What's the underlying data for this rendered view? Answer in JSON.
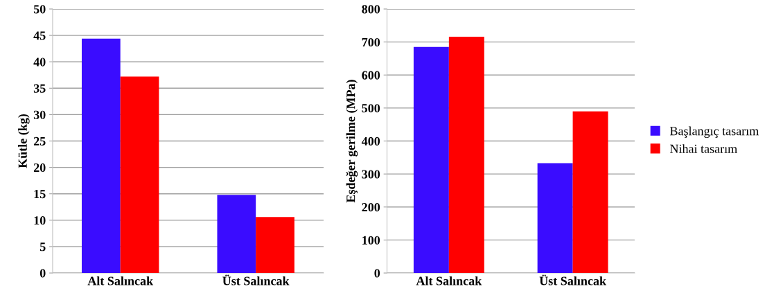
{
  "chart_data": [
    {
      "type": "bar",
      "ylabel": "Kütle (kg)",
      "categories": [
        "Alt Salıncak",
        "Üst Salıncak"
      ],
      "ylim": [
        0,
        50
      ],
      "yticks": [
        0,
        5,
        10,
        15,
        20,
        25,
        30,
        35,
        40,
        45,
        50
      ],
      "grid": "y",
      "legend": false,
      "series": [
        {
          "color": "#3a0cff",
          "values": [
            44.4,
            14.8
          ]
        },
        {
          "color": "#ff0000",
          "values": [
            37.2,
            10.6
          ]
        }
      ]
    },
    {
      "type": "bar",
      "ylabel": "Eşdeğer gerilme (MPa)",
      "categories": [
        "Alt Salıncak",
        "Üst Salıncak"
      ],
      "ylim": [
        0,
        800
      ],
      "yticks": [
        0,
        100,
        200,
        300,
        400,
        500,
        600,
        700,
        800
      ],
      "grid": "y",
      "legend": "right",
      "series": [
        {
          "name": "Başlangıç tasarım",
          "color": "#3a0cff",
          "values": [
            685,
            333
          ]
        },
        {
          "name": "Nihai tasarım",
          "color": "#ff0000",
          "values": [
            716,
            490
          ]
        }
      ]
    }
  ]
}
